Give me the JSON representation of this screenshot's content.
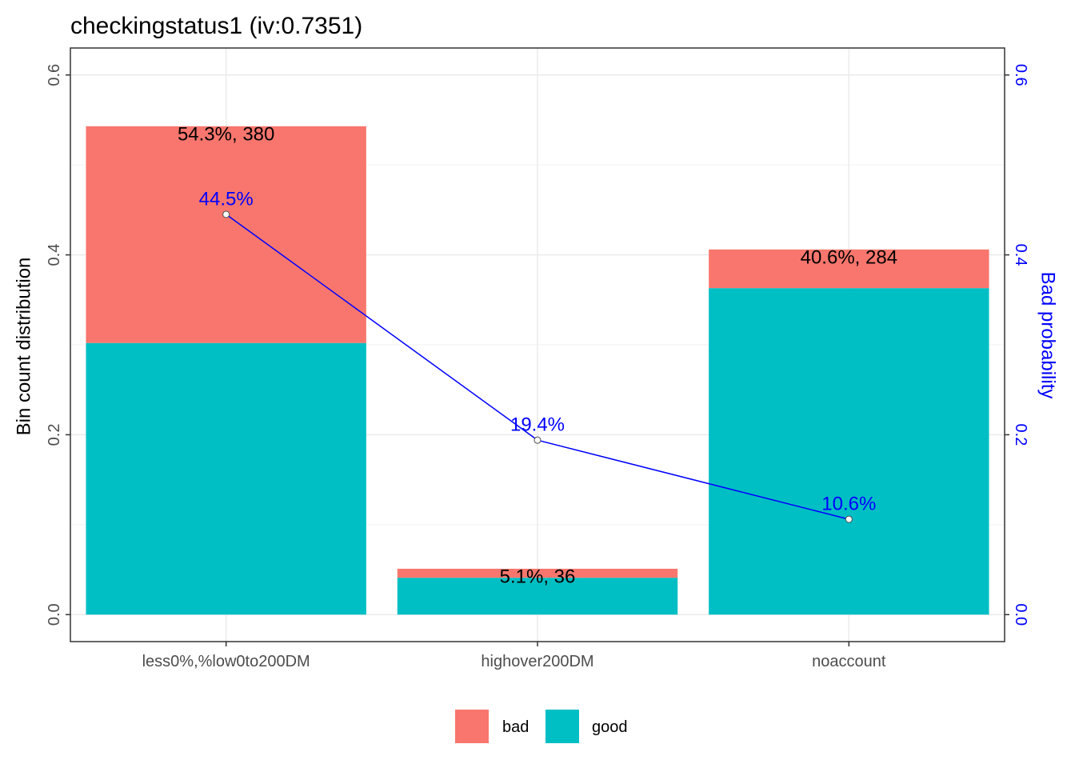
{
  "chart_data": {
    "type": "bar",
    "title": "checkingstatus1  (iv:0.7351)",
    "categories": [
      "less0%,%low0to200DM",
      "highover200DM",
      "noaccount"
    ],
    "series": [
      {
        "name": "good",
        "color": "#00BFC4",
        "values": [
          0.302,
          0.041,
          0.363
        ]
      },
      {
        "name": "bad",
        "color": "#F8766D",
        "values": [
          0.241,
          0.01,
          0.043
        ]
      }
    ],
    "bar_labels": [
      "54.3%, 380",
      "5.1%, 36",
      "40.6%, 284"
    ],
    "bad_probability": {
      "values": [
        0.445,
        0.194,
        0.106
      ],
      "labels": [
        "44.5%",
        "19.4%",
        "10.6%"
      ],
      "color": "#0000FF"
    },
    "ylabel": "Bin count distribution",
    "ylabel_right": "Bad probability",
    "ylim": [
      -0.03,
      0.63
    ],
    "yticks": [
      0.0,
      0.2,
      0.4,
      0.6
    ],
    "ytick_labels": [
      "0.0",
      "0.2",
      "0.4",
      "0.6"
    ],
    "stacked": true,
    "grid": true,
    "legend": {
      "position": "bottom",
      "entries": [
        "bad",
        "good"
      ]
    }
  }
}
